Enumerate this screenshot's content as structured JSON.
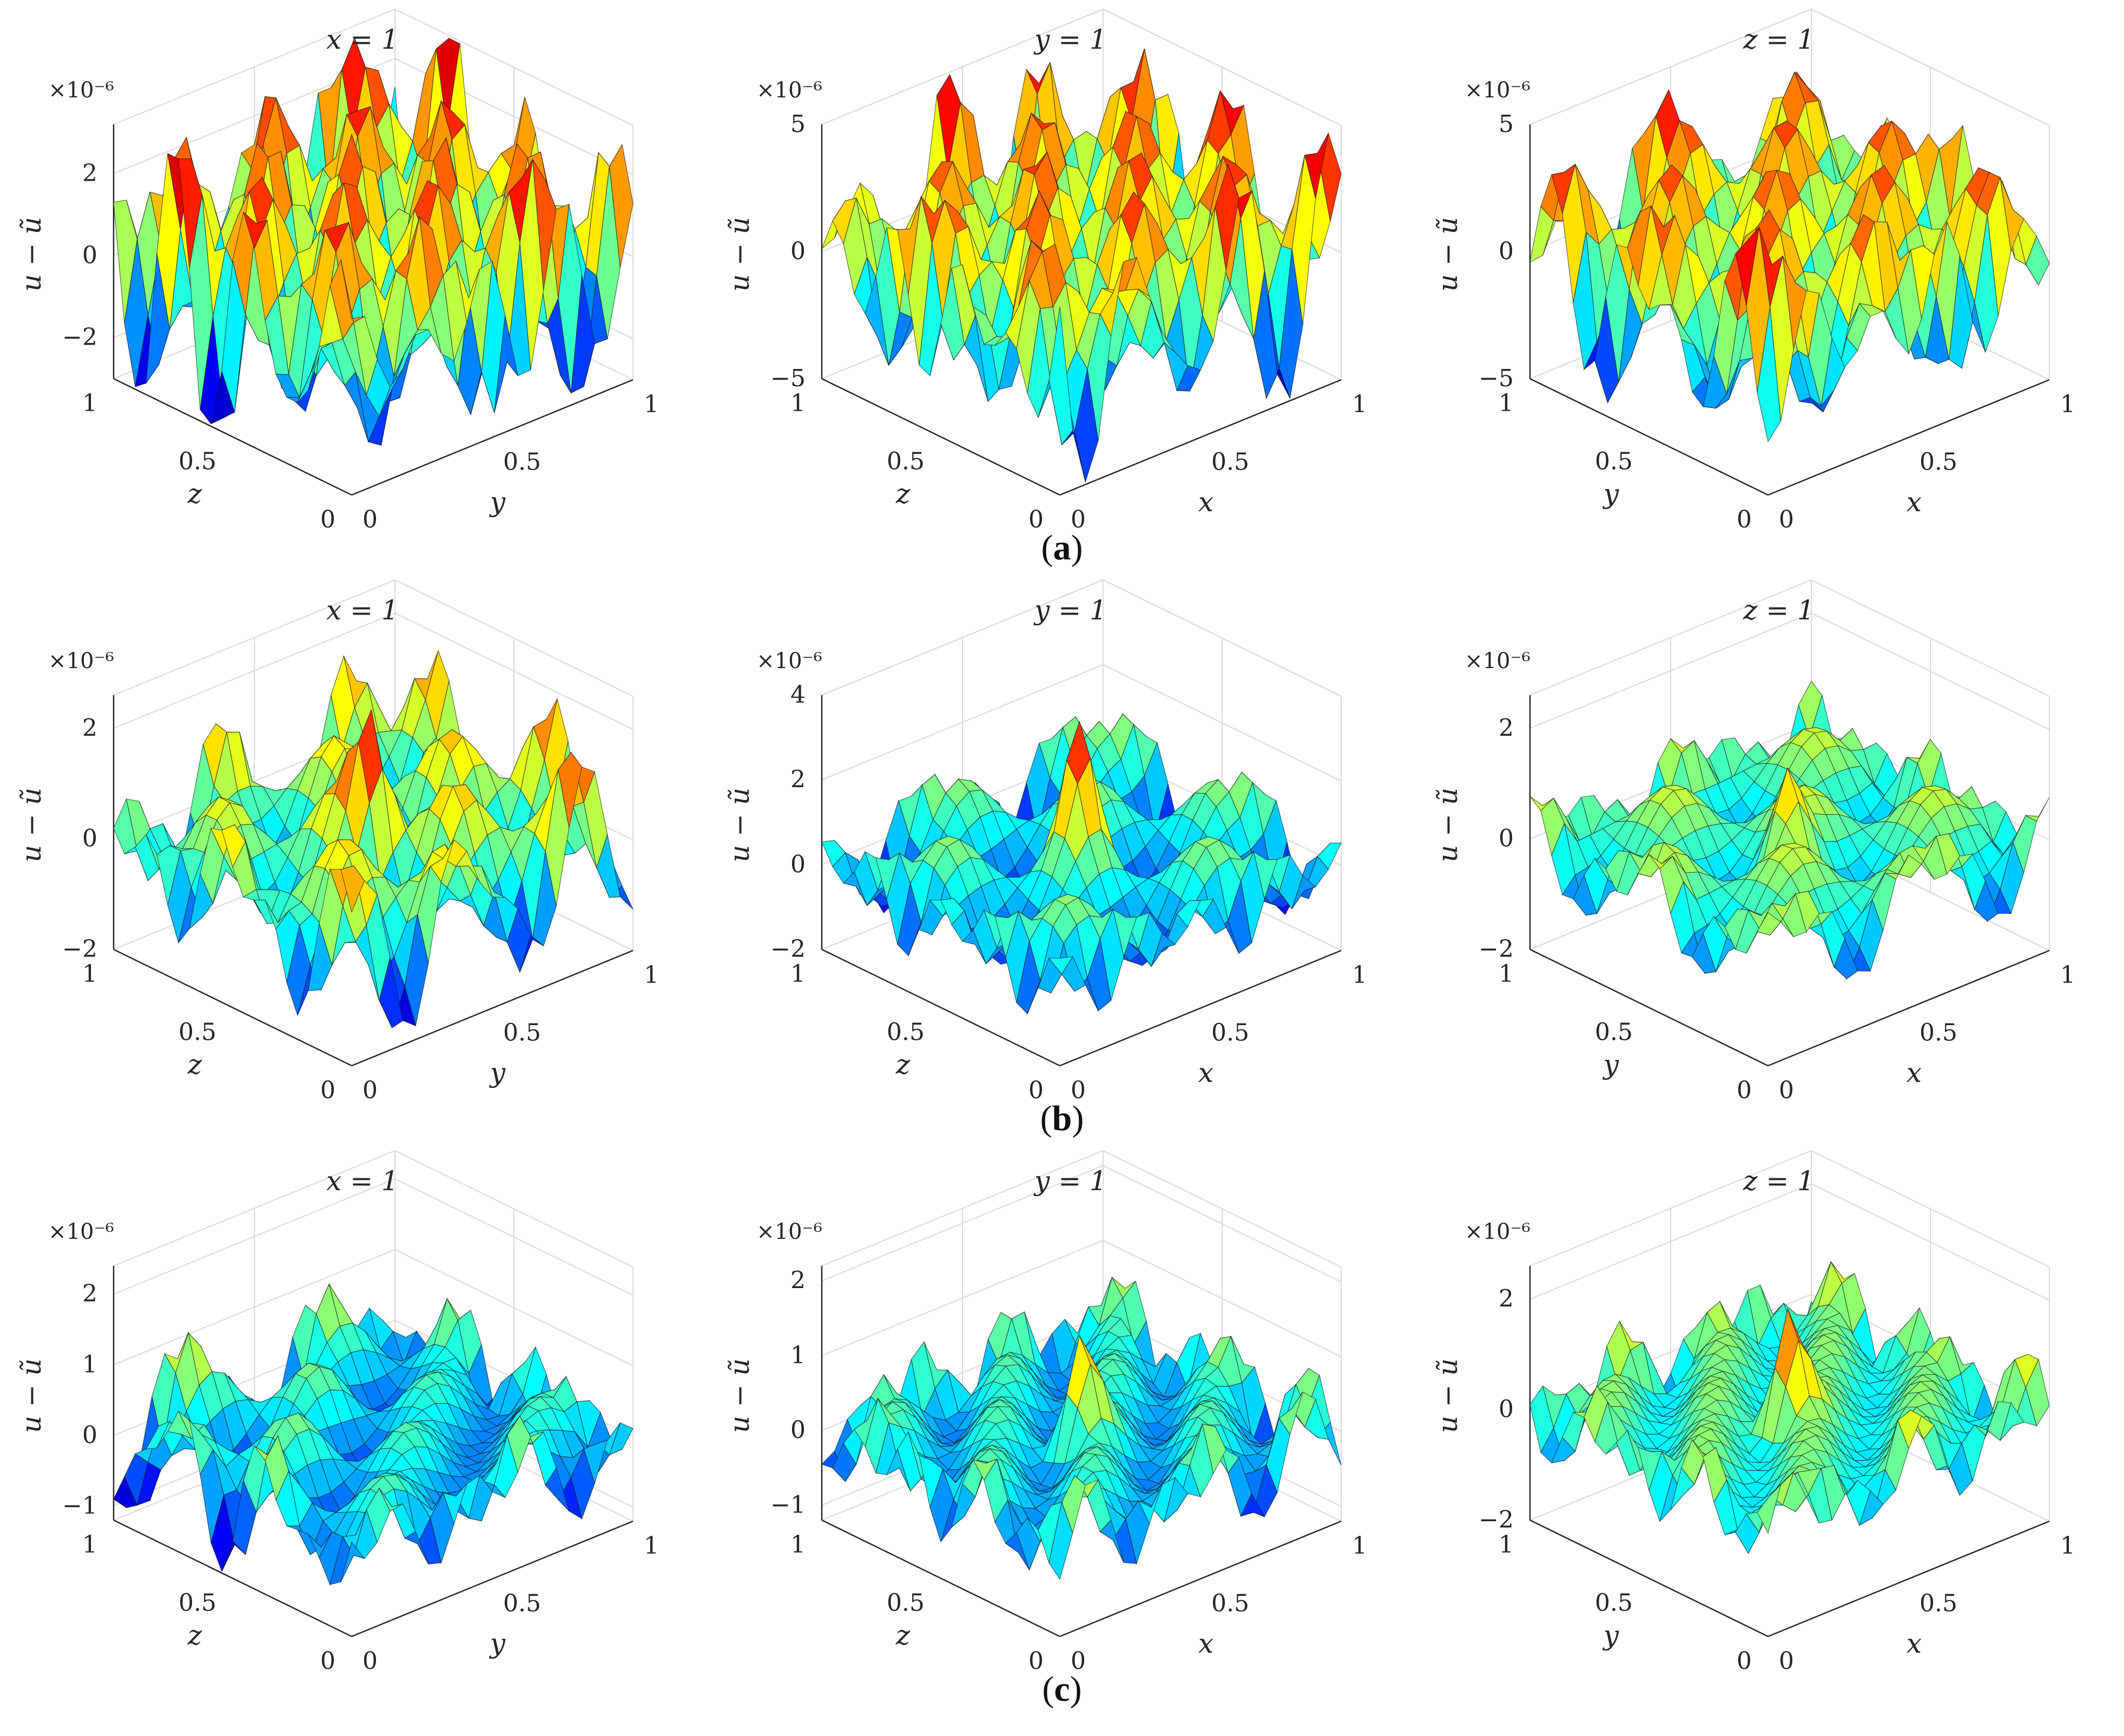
{
  "figure": {
    "row_labels": [
      {
        "open": "(",
        "letter": "a",
        "close": ")"
      },
      {
        "open": "(",
        "letter": "b",
        "close": ")"
      },
      {
        "open": "(",
        "letter": "c",
        "close": ")"
      }
    ]
  },
  "chart_data": [
    {
      "type": "surface3d",
      "panel": "a-1",
      "title": "x = 1",
      "zlabel": "u − ũ",
      "xlabel": "z",
      "ylabel": "y",
      "exponent": "×10⁻⁶",
      "xticks": [
        "0",
        "0.5",
        "1"
      ],
      "yticks": [
        "0",
        "0.5",
        "1"
      ],
      "zticks": [
        "−2",
        "0",
        "2"
      ],
      "zlim": [
        -3,
        3.2
      ],
      "xlim": [
        0,
        1
      ],
      "ylim": [
        0,
        1
      ],
      "grid": true,
      "colormap": "jet",
      "amplitude": 2.6,
      "freq": [
        3.0,
        3.0
      ],
      "peak": null
    },
    {
      "type": "surface3d",
      "panel": "a-2",
      "title": "y = 1",
      "zlabel": "u − ũ",
      "xlabel": "z",
      "ylabel": "x",
      "exponent": "×10⁻⁶",
      "xticks": [
        "0",
        "0.5",
        "1"
      ],
      "yticks": [
        "0",
        "0.5",
        "1"
      ],
      "zticks": [
        "−5",
        "0",
        "5"
      ],
      "zlim": [
        -5,
        5
      ],
      "xlim": [
        0,
        1
      ],
      "ylim": [
        0,
        1
      ],
      "grid": true,
      "colormap": "jet",
      "amplitude": 3.8,
      "freq": [
        2.5,
        3.0
      ],
      "peak": null
    },
    {
      "type": "surface3d",
      "panel": "a-3",
      "title": "z = 1",
      "zlabel": "u − ũ",
      "xlabel": "y",
      "ylabel": "x",
      "exponent": "×10⁻⁶",
      "xticks": [
        "0",
        "0.5",
        "1"
      ],
      "yticks": [
        "0",
        "0.5",
        "1"
      ],
      "zticks": [
        "−5",
        "0",
        "5"
      ],
      "zlim": [
        -5,
        5
      ],
      "xlim": [
        0,
        1
      ],
      "ylim": [
        0,
        1
      ],
      "grid": true,
      "colormap": "jet",
      "amplitude": 3.6,
      "freq": [
        2.5,
        2.5
      ],
      "peak": null
    },
    {
      "type": "surface3d",
      "panel": "b-1",
      "title": "x = 1",
      "zlabel": "u − ũ",
      "xlabel": "z",
      "ylabel": "y",
      "exponent": "×10⁻⁶",
      "xticks": [
        "0",
        "0.5",
        "1"
      ],
      "yticks": [
        "0",
        "0.5",
        "1"
      ],
      "zticks": [
        "−2",
        "0",
        "2"
      ],
      "zlim": [
        -2,
        2.6
      ],
      "xlim": [
        0,
        1
      ],
      "ylim": [
        0,
        1
      ],
      "grid": true,
      "colormap": "jet",
      "amplitude": 1.3,
      "freq": [
        2.0,
        2.5
      ],
      "peak": 2.2
    },
    {
      "type": "surface3d",
      "panel": "b-2",
      "title": "y = 1",
      "zlabel": "u − ũ",
      "xlabel": "z",
      "ylabel": "x",
      "exponent": "×10⁻⁶",
      "xticks": [
        "0",
        "0.5",
        "1"
      ],
      "yticks": [
        "0",
        "0.5",
        "1"
      ],
      "zticks": [
        "−2",
        "0",
        "2",
        "4"
      ],
      "zlim": [
        -2,
        4
      ],
      "xlim": [
        0,
        1
      ],
      "ylim": [
        0,
        1
      ],
      "grid": true,
      "colormap": "jet",
      "amplitude": 1.4,
      "freq": [
        2.0,
        2.0
      ],
      "peak": 3.2
    },
    {
      "type": "surface3d",
      "panel": "b-3",
      "title": "z = 1",
      "zlabel": "u − ũ",
      "xlabel": "y",
      "ylabel": "x",
      "exponent": "×10⁻⁶",
      "xticks": [
        "0",
        "0.5",
        "1"
      ],
      "yticks": [
        "0",
        "0.5",
        "1"
      ],
      "zticks": [
        "−2",
        "0",
        "2"
      ],
      "zlim": [
        -2,
        2.6
      ],
      "xlim": [
        0,
        1
      ],
      "ylim": [
        0,
        1
      ],
      "grid": true,
      "colormap": "jet",
      "amplitude": 1.0,
      "freq": [
        2.0,
        2.0
      ],
      "peak": 1.8
    },
    {
      "type": "surface3d",
      "panel": "c-1",
      "title": "x = 1",
      "zlabel": "u − ũ",
      "xlabel": "z",
      "ylabel": "y",
      "exponent": "×10⁻⁶",
      "xticks": [
        "0",
        "0.5",
        "1"
      ],
      "yticks": [
        "0",
        "0.5",
        "1"
      ],
      "zticks": [
        "−1",
        "0",
        "1",
        "2"
      ],
      "zlim": [
        -1.2,
        2.4
      ],
      "xlim": [
        0,
        1
      ],
      "ylim": [
        0,
        1
      ],
      "grid": true,
      "colormap": "jet",
      "amplitude": 0.9,
      "freq": [
        2.5,
        2.0
      ],
      "peak": null
    },
    {
      "type": "surface3d",
      "panel": "c-2",
      "title": "y = 1",
      "zlabel": "u − ũ",
      "xlabel": "z",
      "ylabel": "x",
      "exponent": "×10⁻⁶",
      "xticks": [
        "0",
        "0.5",
        "1"
      ],
      "yticks": [
        "0",
        "0.5",
        "1"
      ],
      "zticks": [
        "−1",
        "0",
        "1",
        "2"
      ],
      "zlim": [
        -1.2,
        2.2
      ],
      "xlim": [
        0,
        1
      ],
      "ylim": [
        0,
        1
      ],
      "grid": true,
      "colormap": "jet",
      "amplitude": 0.9,
      "freq": [
        2.5,
        2.5
      ],
      "peak": 1.6
    },
    {
      "type": "surface3d",
      "panel": "c-3",
      "title": "z = 1",
      "zlabel": "u − ũ",
      "xlabel": "y",
      "ylabel": "x",
      "exponent": "×10⁻⁶",
      "xticks": [
        "0",
        "0.5",
        "1"
      ],
      "yticks": [
        "0",
        "0.5",
        "1"
      ],
      "zticks": [
        "−2",
        "0",
        "2"
      ],
      "zlim": [
        -2,
        2.6
      ],
      "xlim": [
        0,
        1
      ],
      "ylim": [
        0,
        1
      ],
      "grid": true,
      "colormap": "jet",
      "amplitude": 1.1,
      "freq": [
        2.5,
        2.5
      ],
      "peak": 2.4
    }
  ]
}
